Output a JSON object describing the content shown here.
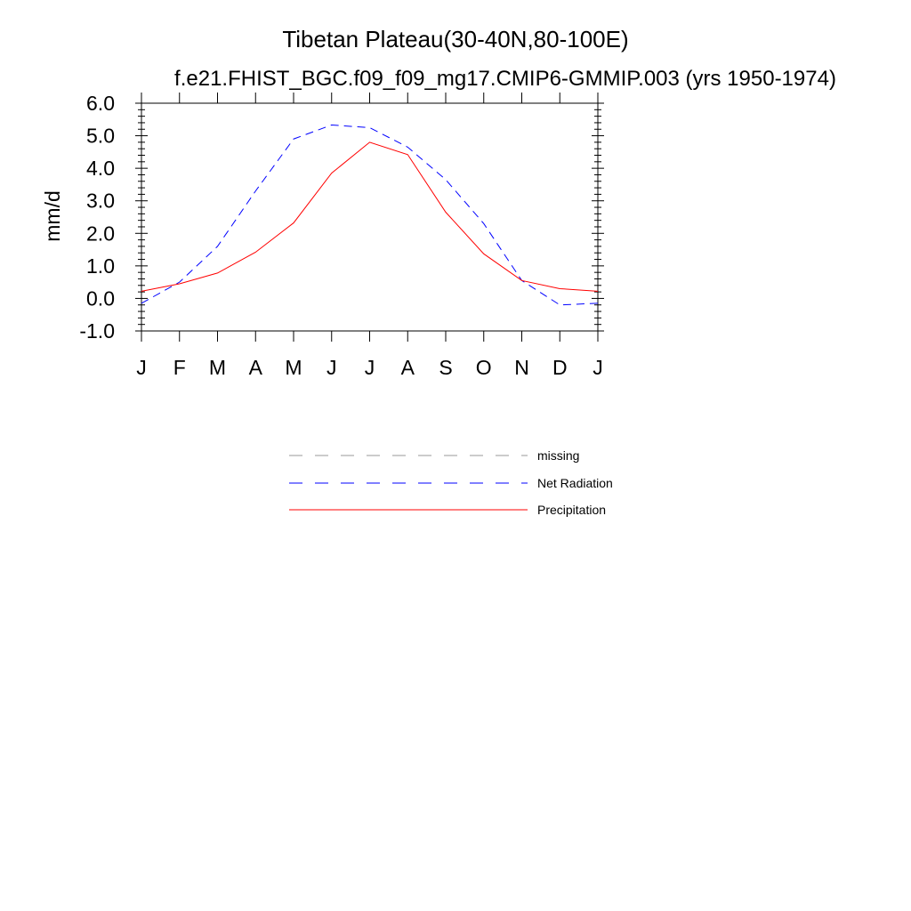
{
  "chart_data": {
    "type": "line",
    "title": "Tibetan Plateau(30-40N,80-100E)",
    "subtitle": "f.e21.FHIST_BGC.f09_f09_mg17.CMIP6-GMMIP.003 (yrs 1950-1974)",
    "ylabel": "mm/d",
    "xlabel": "",
    "ylim": [
      -1.0,
      6.0
    ],
    "yticks": [
      "6.0",
      "5.0",
      "4.0",
      "3.0",
      "2.0",
      "1.0",
      "0.0",
      "-1.0"
    ],
    "ytick_values": [
      6.0,
      5.0,
      4.0,
      3.0,
      2.0,
      1.0,
      0.0,
      -1.0
    ],
    "categories": [
      "J",
      "F",
      "M",
      "A",
      "M",
      "J",
      "J",
      "A",
      "S",
      "O",
      "N",
      "D",
      "J"
    ],
    "grid": false,
    "legend_position": "bottom-center",
    "series": [
      {
        "name": "Net Radiation",
        "color": "#0000ff",
        "style": "dashed",
        "values": [
          -0.15,
          0.5,
          1.6,
          3.3,
          4.9,
          5.33,
          5.25,
          4.65,
          3.65,
          2.3,
          0.55,
          -0.2,
          -0.15
        ]
      },
      {
        "name": "Precipitation",
        "color": "#ff0000",
        "style": "solid",
        "values": [
          0.22,
          0.45,
          0.78,
          1.42,
          2.32,
          3.85,
          4.8,
          4.42,
          2.65,
          1.37,
          0.55,
          0.3,
          0.22
        ]
      }
    ],
    "legend": [
      {
        "label": "missing",
        "color": "#999999",
        "style": "dashed"
      },
      {
        "label": "Net Radiation",
        "color": "#0000ff",
        "style": "dashed"
      },
      {
        "label": "Precipitation",
        "color": "#ff0000",
        "style": "solid"
      }
    ]
  }
}
